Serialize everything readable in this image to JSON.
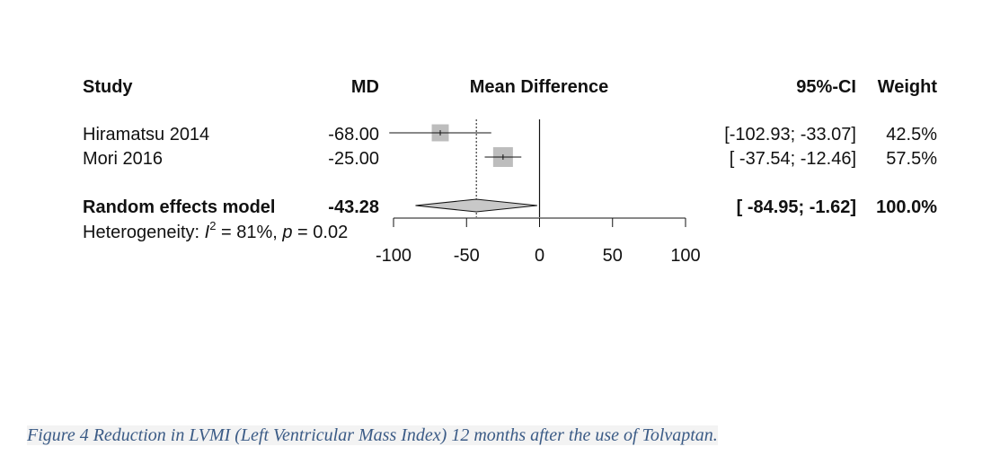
{
  "chart_data": {
    "type": "forest",
    "headers": {
      "study": "Study",
      "md": "MD",
      "plot": "Mean Difference",
      "ci": "95%-CI",
      "weight": "Weight"
    },
    "studies": [
      {
        "name": "Hiramatsu 2014",
        "md": -68.0,
        "md_label": "-68.00",
        "lower": -102.93,
        "upper": -33.07,
        "ci_label": "[-102.93; -33.07]",
        "weight": 42.5,
        "weight_label": "42.5%"
      },
      {
        "name": "Mori 2016",
        "md": -25.0,
        "md_label": "-25.00",
        "lower": -37.54,
        "upper": -12.46,
        "ci_label": "[ -37.54; -12.46]",
        "weight": 57.5,
        "weight_label": "57.5%"
      }
    ],
    "pooled": {
      "name": "Random effects model",
      "md": -43.28,
      "md_label": "-43.28",
      "lower": -84.95,
      "upper": -1.62,
      "ci_label": "[ -84.95;  -1.62]",
      "weight_label": "100.0%"
    },
    "heterogeneity": {
      "prefix": "Heterogeneity: ",
      "stat": "I",
      "sup": "2",
      "rest": " = 81%, ",
      "p": "p",
      "p_rest": " = 0.02"
    },
    "x_axis": {
      "range": [
        -100,
        100
      ],
      "ticks": [
        -100,
        -50,
        0,
        50,
        100
      ],
      "tick_labels": [
        "-100",
        "-50",
        "0",
        "50",
        "100"
      ]
    },
    "null_line": 0
  },
  "caption": {
    "label": "Figure 4",
    "text": " Reduction in LVMI (Left Ventricular Mass Index) 12 months after the use of Tolvaptan."
  },
  "colors": {
    "box": "#bdbdbd",
    "diamond": "#c8c8c8",
    "line": "#111111",
    "caption": "#3b5b86"
  }
}
